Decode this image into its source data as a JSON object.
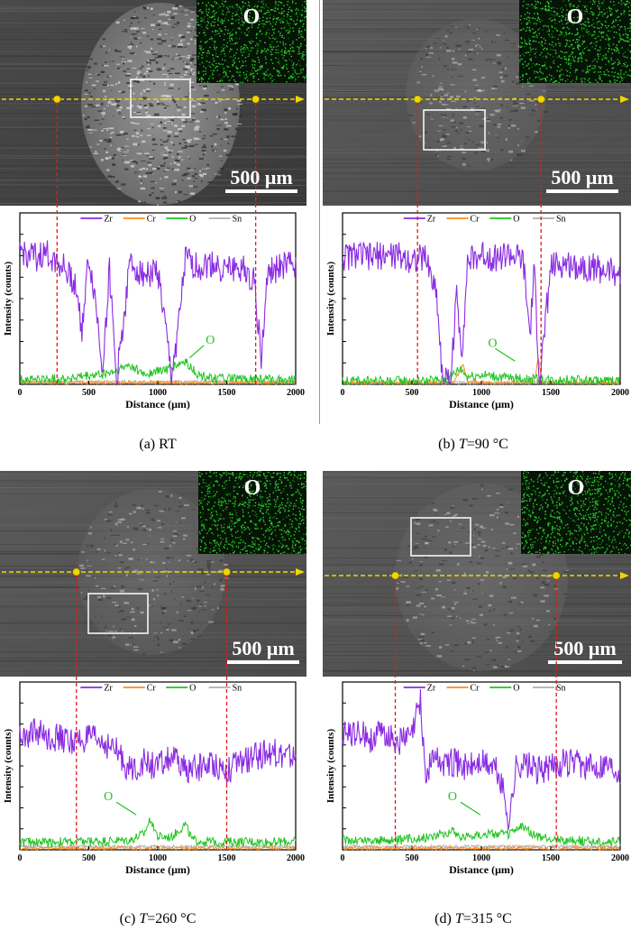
{
  "figure": {
    "panels": [
      {
        "id": "a",
        "caption_prefix": "(a) ",
        "caption_italic": "",
        "caption_rest": "RT",
        "map_label": "O",
        "scalebar_label": "500 μm",
        "o_annotation": "O",
        "legend": [
          "Zr",
          "Cr",
          "O",
          "Sn"
        ],
        "marker_x_um": [
          270,
          1710
        ],
        "label_x_um": 1230
      },
      {
        "id": "b",
        "caption_prefix": "(b) ",
        "caption_italic": "T",
        "caption_rest": "=90 °C",
        "map_label": "O",
        "scalebar_label": "500 μm",
        "o_annotation": "O",
        "legend": [
          "Zr",
          "Cr",
          "O",
          "Sn"
        ],
        "marker_x_um": [
          540,
          1430
        ],
        "label_x_um": 1100
      },
      {
        "id": "c",
        "caption_prefix": "(c) ",
        "caption_italic": "T",
        "caption_rest": "=260 °C",
        "map_label": "O",
        "scalebar_label": "500 μm",
        "o_annotation": "O",
        "legend": [
          "Zr",
          "Cr",
          "O",
          "Sn"
        ],
        "marker_x_um": [
          410,
          1500
        ],
        "label_x_um": 700
      },
      {
        "id": "d",
        "caption_prefix": "(d) ",
        "caption_italic": "T",
        "caption_rest": "=315 °C",
        "map_label": "O",
        "scalebar_label": "500 μm",
        "o_annotation": "O",
        "legend": [
          "Zr",
          "Cr",
          "O",
          "Sn"
        ],
        "marker_x_um": [
          380,
          1540
        ],
        "label_x_um": 850
      }
    ],
    "series_colors": {
      "Zr": "#8a2be2",
      "Cr": "#ff8c1a",
      "O": "#1fc41f",
      "Sn": "#b0b0b0"
    },
    "accent": {
      "marker": "#f2d600",
      "dash_red": "#e21b1b",
      "arrow": "#f2d600"
    }
  },
  "chart_data": [
    {
      "type": "line",
      "panel": "a",
      "xlabel": "Distance (μm)",
      "ylabel": "Intensity (counts)",
      "xlim": [
        0,
        2000
      ],
      "x_ticks": [
        "0",
        "500",
        "1000",
        "1500",
        "2000"
      ],
      "series": [
        {
          "name": "Zr",
          "x": [
            0,
            100,
            200,
            300,
            400,
            450,
            500,
            550,
            600,
            650,
            700,
            800,
            900,
            1000,
            1100,
            1150,
            1200,
            1300,
            1400,
            1500,
            1600,
            1700,
            1750,
            1800,
            1900,
            2000
          ],
          "y": [
            0.82,
            0.78,
            0.8,
            0.74,
            0.62,
            0.35,
            0.78,
            0.5,
            0.1,
            0.7,
            0.02,
            0.75,
            0.68,
            0.7,
            0.05,
            0.35,
            0.76,
            0.72,
            0.74,
            0.7,
            0.72,
            0.65,
            0.15,
            0.7,
            0.72,
            0.74
          ]
        },
        {
          "name": "O",
          "x": [
            0,
            200,
            400,
            600,
            700,
            800,
            900,
            1000,
            1100,
            1200,
            1300,
            1400,
            1600,
            2000
          ],
          "y": [
            0.03,
            0.03,
            0.04,
            0.06,
            0.08,
            0.12,
            0.06,
            0.08,
            0.1,
            0.14,
            0.05,
            0.04,
            0.03,
            0.03
          ]
        },
        {
          "name": "Cr",
          "x": [
            0,
            2000
          ],
          "y": [
            0.01,
            0.01
          ]
        },
        {
          "name": "Sn",
          "x": [
            0,
            2000
          ],
          "y": [
            0.015,
            0.015
          ]
        }
      ]
    },
    {
      "type": "line",
      "panel": "b",
      "xlabel": "Distance (μm)",
      "ylabel": "Intensity (counts)",
      "xlim": [
        0,
        2000
      ],
      "x_ticks": [
        "0",
        "500",
        "1000",
        "1500",
        "2000"
      ],
      "series": [
        {
          "name": "Zr",
          "x": [
            0,
            100,
            200,
            300,
            400,
            500,
            600,
            680,
            720,
            780,
            820,
            860,
            900,
            1000,
            1100,
            1200,
            1300,
            1350,
            1380,
            1420,
            1500,
            1600,
            1700,
            1800,
            1900,
            2000
          ],
          "y": [
            0.78,
            0.8,
            0.78,
            0.8,
            0.79,
            0.77,
            0.78,
            0.55,
            0.02,
            0.03,
            0.55,
            0.2,
            0.75,
            0.8,
            0.78,
            0.8,
            0.76,
            0.3,
            0.7,
            0.02,
            0.72,
            0.74,
            0.73,
            0.72,
            0.7,
            0.68
          ]
        },
        {
          "name": "O",
          "x": [
            0,
            600,
            750,
            850,
            900,
            1000,
            1100,
            1200,
            1400,
            2000
          ],
          "y": [
            0.02,
            0.02,
            0.03,
            0.1,
            0.05,
            0.06,
            0.05,
            0.04,
            0.03,
            0.02
          ]
        },
        {
          "name": "Cr",
          "x": [
            0,
            800,
            870,
            900,
            1000,
            1380,
            1410,
            1440,
            2000
          ],
          "y": [
            0.01,
            0.01,
            0.12,
            0.02,
            0.01,
            0.01,
            0.16,
            0.01,
            0.01
          ]
        },
        {
          "name": "Sn",
          "x": [
            0,
            2000
          ],
          "y": [
            0.01,
            0.01
          ]
        }
      ]
    },
    {
      "type": "line",
      "panel": "c",
      "xlabel": "Distance (μm)",
      "ylabel": "Intensity (counts)",
      "xlim": [
        0,
        2000
      ],
      "x_ticks": [
        "0",
        "500",
        "1000",
        "1500",
        "2000"
      ],
      "series": [
        {
          "name": "Zr",
          "x": [
            0,
            100,
            200,
            300,
            400,
            500,
            600,
            700,
            800,
            900,
            1000,
            1100,
            1200,
            1300,
            1400,
            1500,
            1600,
            1700,
            1800,
            1900,
            2000
          ],
          "y": [
            0.72,
            0.74,
            0.72,
            0.7,
            0.68,
            0.7,
            0.68,
            0.62,
            0.5,
            0.55,
            0.52,
            0.58,
            0.5,
            0.52,
            0.55,
            0.5,
            0.55,
            0.58,
            0.62,
            0.6,
            0.58
          ]
        },
        {
          "name": "O",
          "x": [
            0,
            400,
            800,
            900,
            950,
            1000,
            1100,
            1200,
            1250,
            1400,
            1600,
            2000
          ],
          "y": [
            0.05,
            0.05,
            0.06,
            0.1,
            0.2,
            0.08,
            0.08,
            0.16,
            0.06,
            0.05,
            0.05,
            0.05
          ]
        },
        {
          "name": "Cr",
          "x": [
            0,
            2000
          ],
          "y": [
            0.01,
            0.01
          ]
        },
        {
          "name": "Sn",
          "x": [
            0,
            2000
          ],
          "y": [
            0.02,
            0.02
          ]
        }
      ]
    },
    {
      "type": "line",
      "panel": "d",
      "xlabel": "Distance (μm)",
      "ylabel": "Intensity (counts)",
      "xlim": [
        0,
        2000
      ],
      "x_ticks": [
        "0",
        "500",
        "1000",
        "1500",
        "2000"
      ],
      "series": [
        {
          "name": "Zr",
          "x": [
            0,
            100,
            200,
            300,
            400,
            500,
            560,
            600,
            650,
            700,
            800,
            900,
            1000,
            1100,
            1150,
            1200,
            1250,
            1300,
            1400,
            1500,
            1600,
            1700,
            1800,
            1900,
            2000
          ],
          "y": [
            0.72,
            0.74,
            0.7,
            0.74,
            0.68,
            0.72,
            0.95,
            0.45,
            0.6,
            0.55,
            0.55,
            0.52,
            0.55,
            0.52,
            0.4,
            0.18,
            0.52,
            0.55,
            0.5,
            0.52,
            0.55,
            0.54,
            0.52,
            0.55,
            0.5
          ]
        },
        {
          "name": "O",
          "x": [
            0,
            400,
            600,
            800,
            850,
            1000,
            1200,
            1300,
            1400,
            1600,
            2000
          ],
          "y": [
            0.06,
            0.06,
            0.08,
            0.12,
            0.08,
            0.1,
            0.1,
            0.15,
            0.08,
            0.06,
            0.05
          ]
        },
        {
          "name": "Cr",
          "x": [
            0,
            2000
          ],
          "y": [
            0.01,
            0.01
          ]
        },
        {
          "name": "Sn",
          "x": [
            0,
            2000
          ],
          "y": [
            0.02,
            0.02
          ]
        }
      ]
    }
  ]
}
